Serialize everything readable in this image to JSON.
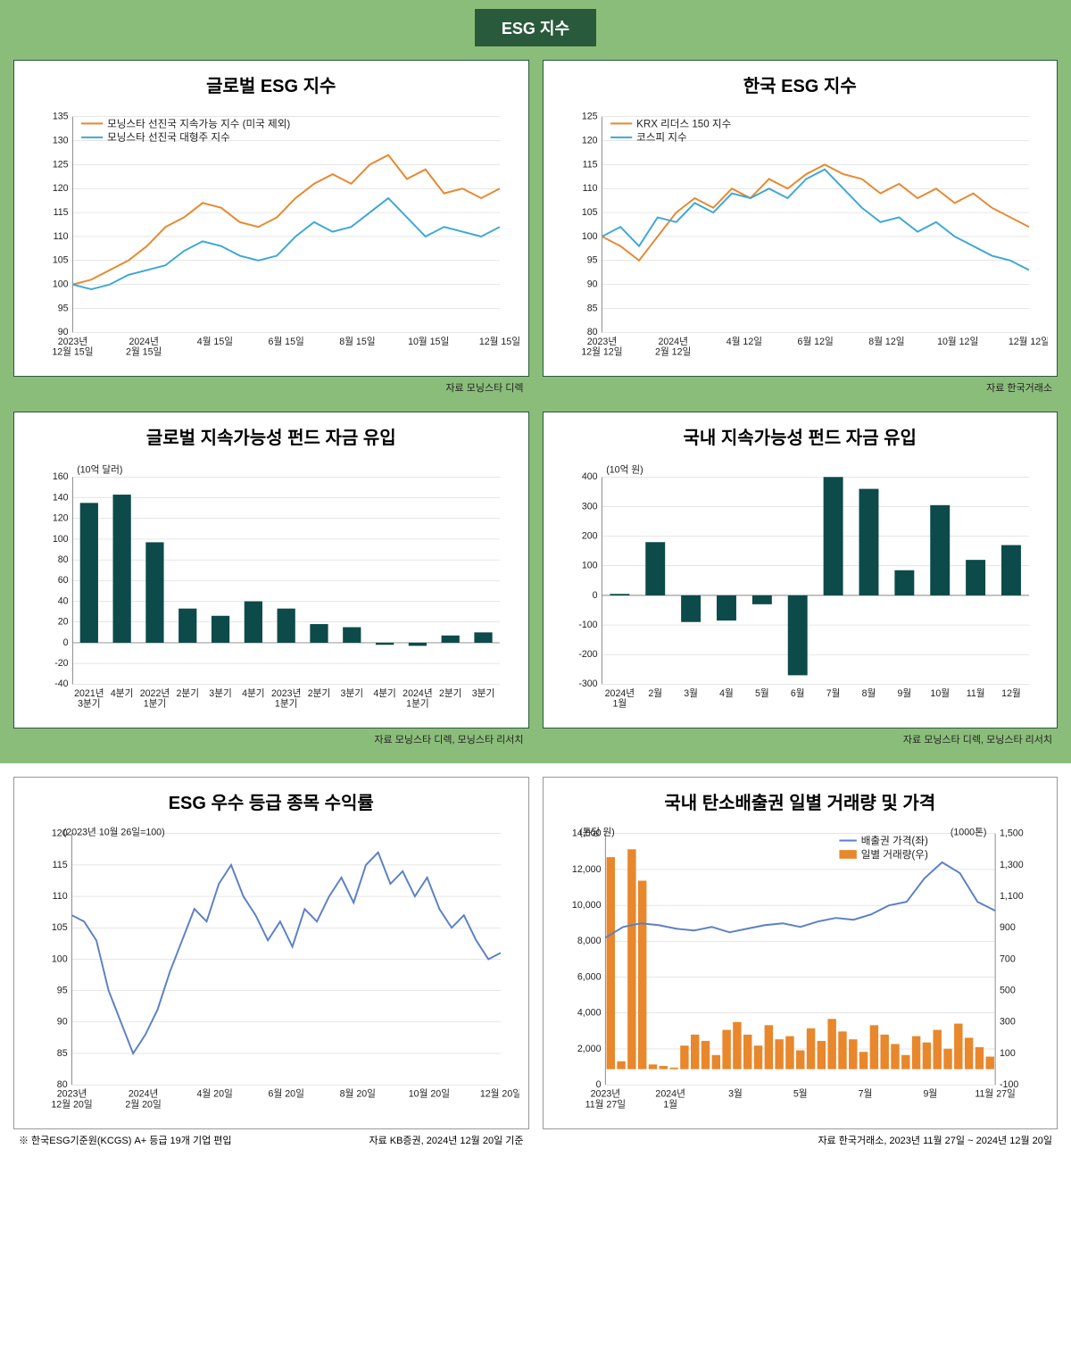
{
  "header_title": "ESG 지수",
  "charts": {
    "global_esg": {
      "title": "글로벌 ESG 지수",
      "type": "line",
      "legend": [
        {
          "label": "모닝스타 선진국 지속가능 지수 (미국 제외)",
          "color": "#e8872b"
        },
        {
          "label": "모닝스타 선진국 대형주 지수",
          "color": "#3ba7d6"
        }
      ],
      "ylim": [
        90,
        135
      ],
      "ytick_step": 5,
      "x_labels": [
        "2023년\n12월 15일",
        "2024년\n2월 15일",
        "4월 15일",
        "6월 15일",
        "8월 15일",
        "10월 15일",
        "12월 15일"
      ],
      "series": [
        {
          "color": "#e8872b",
          "y": [
            100,
            101,
            103,
            105,
            108,
            112,
            114,
            117,
            116,
            113,
            112,
            114,
            118,
            121,
            123,
            121,
            125,
            127,
            122,
            124,
            119,
            120,
            118,
            120
          ]
        },
        {
          "color": "#3ba7d6",
          "y": [
            100,
            99,
            100,
            102,
            103,
            104,
            107,
            109,
            108,
            106,
            105,
            106,
            110,
            113,
            111,
            112,
            115,
            118,
            114,
            110,
            112,
            111,
            110,
            112
          ]
        }
      ],
      "source": "자료 모닝스타 디렉"
    },
    "korea_esg": {
      "title": "한국 ESG 지수",
      "type": "line",
      "legend": [
        {
          "label": "KRX 리더스 150 지수",
          "color": "#e8872b"
        },
        {
          "label": "코스피 지수",
          "color": "#3ba7d6"
        }
      ],
      "ylim": [
        80,
        125
      ],
      "ytick_step": 5,
      "x_labels": [
        "2023년\n12월 12일",
        "2024년\n2월 12일",
        "4월 12일",
        "6월 12일",
        "8월 12일",
        "10월 12일",
        "12월 12일"
      ],
      "series": [
        {
          "color": "#e8872b",
          "y": [
            100,
            98,
            95,
            100,
            105,
            108,
            106,
            110,
            108,
            112,
            110,
            113,
            115,
            113,
            112,
            109,
            111,
            108,
            110,
            107,
            109,
            106,
            104,
            102
          ]
        },
        {
          "color": "#3ba7d6",
          "y": [
            100,
            102,
            98,
            104,
            103,
            107,
            105,
            109,
            108,
            110,
            108,
            112,
            114,
            110,
            106,
            103,
            104,
            101,
            103,
            100,
            98,
            96,
            95,
            93
          ]
        }
      ],
      "source": "자료 한국거래소"
    },
    "global_fund": {
      "title": "글로벌 지속가능성 펀드 자금 유입",
      "type": "bar",
      "y_unit": "(10억 달러)",
      "ylim": [
        -40,
        160
      ],
      "ytick_step": 20,
      "bar_color": "#0d4a4a",
      "x_labels": [
        "2021년\n3분기",
        "4분기",
        "2022년\n1분기",
        "2분기",
        "3분기",
        "4분기",
        "2023년\n1분기",
        "2분기",
        "3분기",
        "4분기",
        "2024년\n1분기",
        "2분기",
        "3분기"
      ],
      "values": [
        135,
        143,
        97,
        33,
        26,
        40,
        33,
        18,
        15,
        -2,
        -3,
        7,
        10
      ],
      "source": "자료 모닝스타 디렉, 모닝스타 리서치"
    },
    "korea_fund": {
      "title": "국내 지속가능성 펀드 자금 유입",
      "type": "bar",
      "y_unit": "(10억 원)",
      "ylim": [
        -300,
        400
      ],
      "ytick_step": 100,
      "bar_color": "#0d4a4a",
      "x_labels": [
        "2024년\n1월",
        "2월",
        "3월",
        "4월",
        "5월",
        "6월",
        "7월",
        "8월",
        "9월",
        "10월",
        "11월",
        "12월"
      ],
      "values": [
        5,
        180,
        -90,
        -85,
        -30,
        -270,
        400,
        360,
        85,
        305,
        120,
        170
      ],
      "source": "자료 모닝스타 디렉, 모닝스타 리서치"
    },
    "esg_grade": {
      "title": "ESG 우수 등급 종목 수익률",
      "type": "line",
      "y_unit": "(2023년 10월 26일=100)",
      "ylim": [
        80,
        120
      ],
      "ytick_step": 5,
      "line_color": "#5b7fc7",
      "x_labels": [
        "2023년\n12월 20일",
        "2024년\n2월 20일",
        "4월 20일",
        "6월 20일",
        "8월 20일",
        "10월 20일",
        "12월 20일"
      ],
      "y": [
        107,
        106,
        103,
        95,
        90,
        85,
        88,
        92,
        98,
        103,
        108,
        106,
        112,
        115,
        110,
        107,
        103,
        106,
        102,
        108,
        106,
        110,
        113,
        109,
        115,
        117,
        112,
        114,
        110,
        113,
        108,
        105,
        107,
        103,
        100,
        101
      ],
      "footnote_left": "※ 한국ESG기준원(KCGS) A+ 등급 19개 기업 편입",
      "footnote_right": "자료 KB증권, 2024년 12월 20일 기준"
    },
    "carbon": {
      "title": "국내 탄소배출권 일별 거래량 및 가격",
      "type": "combo",
      "legend": [
        {
          "label": "배출권 가격(좌)",
          "color": "#5b7fc7"
        },
        {
          "label": "일별 거래량(우)",
          "color": "#e8872b"
        }
      ],
      "y1_unit": "(톤당 원)",
      "y1_lim": [
        0,
        14000
      ],
      "y1_tick": 2000,
      "y2_unit": "(1000톤)",
      "y2_ticks": [
        -100,
        100,
        300,
        500,
        700,
        900,
        1100,
        1300,
        1500
      ],
      "x_labels": [
        "2023년\n11월 27일",
        "2024년\n1월",
        "3월",
        "5월",
        "7월",
        "9월",
        "11월 27일"
      ],
      "price": [
        8200,
        8800,
        9000,
        8900,
        8700,
        8600,
        8800,
        8500,
        8700,
        8900,
        9000,
        8800,
        9100,
        9300,
        9200,
        9500,
        10000,
        10200,
        11500,
        12400,
        11800,
        10200,
        9700
      ],
      "volume": [
        13500,
        500,
        14000,
        12000,
        300,
        200,
        100,
        1500,
        2200,
        1800,
        900,
        2500,
        3000,
        2200,
        1500,
        2800,
        1900,
        2100,
        1200,
        2600,
        1800,
        3200,
        2400,
        1900,
        1100,
        2800,
        2200,
        1600,
        900,
        2100,
        1700,
        2500,
        1300,
        2900,
        2000,
        1400,
        800
      ],
      "source": "자료 한국거래소, 2023년 11월 27일 ~ 2024년 12월 20일"
    }
  }
}
